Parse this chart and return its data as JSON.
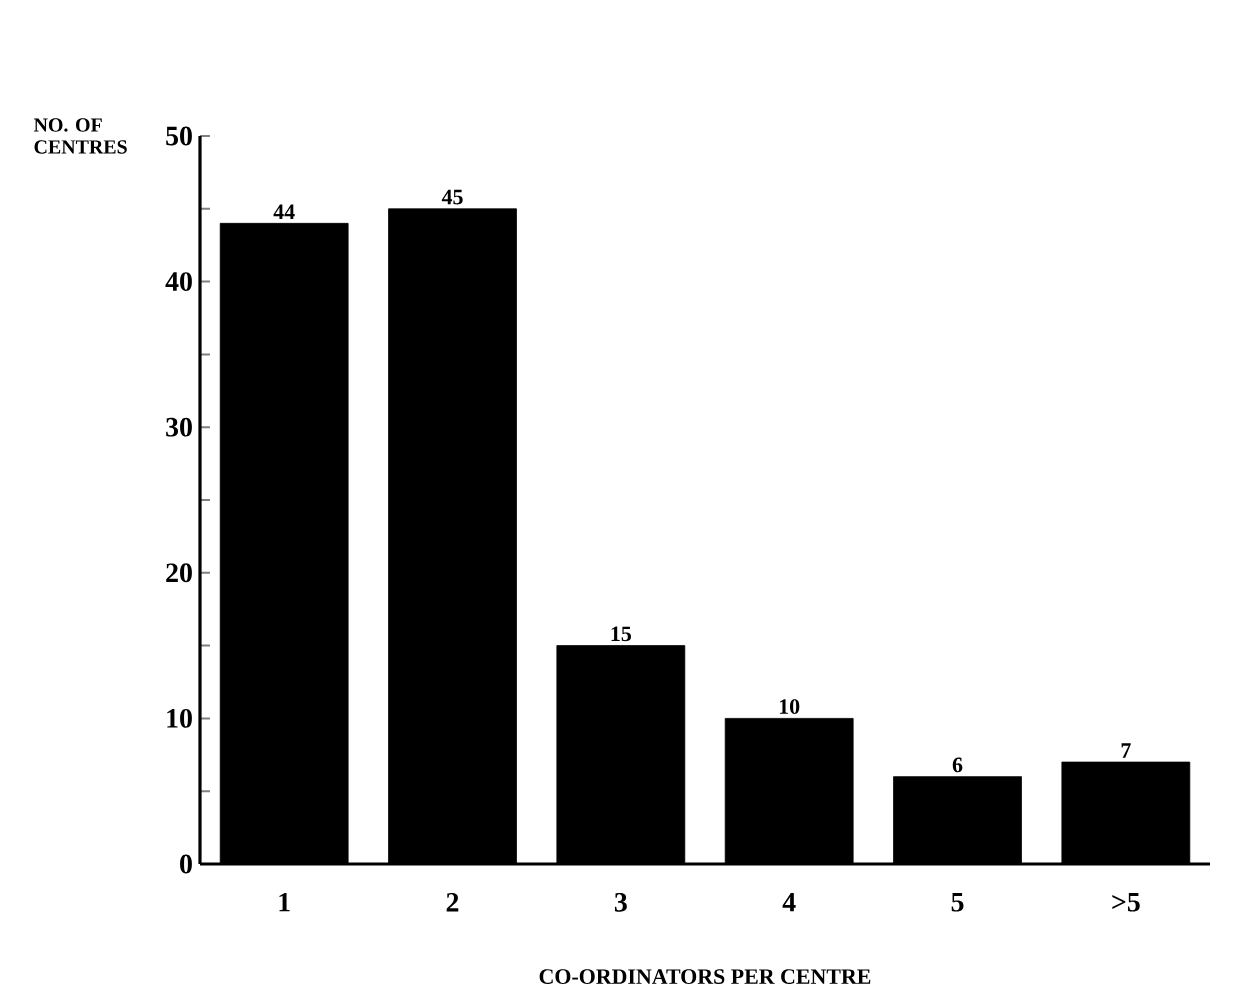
{
  "chart_data": {
    "type": "bar",
    "xlabel": "CO-ORDINATORS PER CENTRE",
    "ylabel": "NO. OF CENTRES",
    "categories": [
      "1",
      "2",
      "3",
      "4",
      "5",
      ">5"
    ],
    "values": [
      44,
      45,
      15,
      10,
      6,
      7
    ],
    "color": "#000000",
    "data_labels": true,
    "ylim": [
      0,
      50
    ],
    "yticks": [
      0,
      {
        "value": 5,
        "label": null
      },
      10,
      {
        "value": 15,
        "label": null
      },
      20,
      {
        "value": 25,
        "label": null
      },
      30,
      {
        "value": 35,
        "label": null
      },
      40,
      {
        "value": 45,
        "label": null
      },
      50
    ]
  }
}
